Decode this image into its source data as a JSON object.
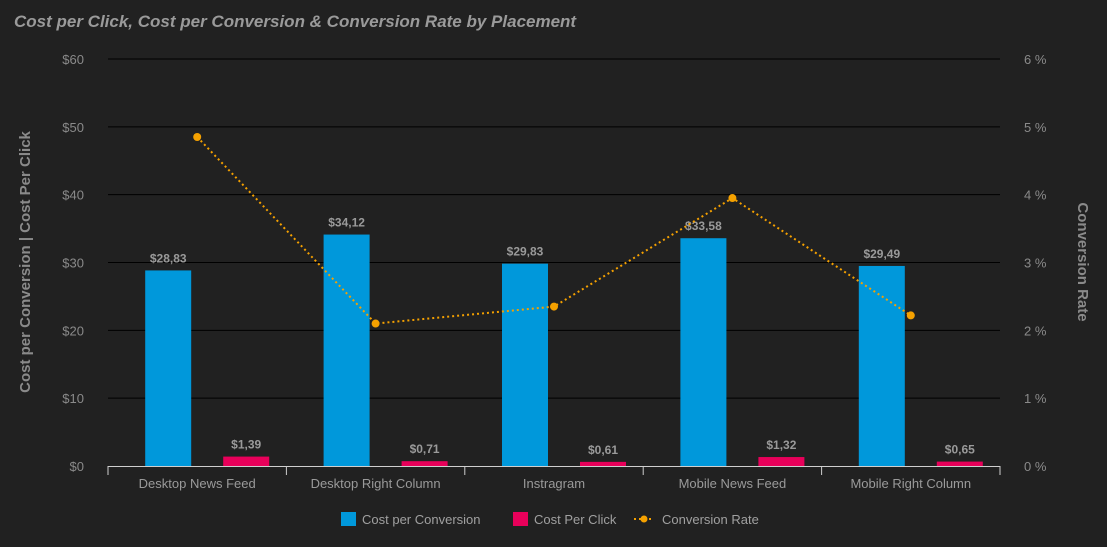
{
  "chart_data": {
    "type": "bar",
    "title": "Cost per Click, Cost per Conversion & Conversion Rate by Placement",
    "ylabel": "Cost per Conversion | Cost Per Click",
    "y2label": "Conversion Rate",
    "ylim": [
      0,
      60
    ],
    "y2lim": [
      0,
      6
    ],
    "y_ticks": [
      "$0",
      "$10",
      "$20",
      "$30",
      "$40",
      "$50",
      "$60"
    ],
    "y2_ticks": [
      "0 %",
      "1 %",
      "2 %",
      "3 %",
      "4 %",
      "5 %",
      "6 %"
    ],
    "grid": true,
    "legend_position": "bottom",
    "categories": [
      "Desktop News Feed",
      "Desktop Right Column",
      "Instragram",
      "Mobile News Feed",
      "Mobile Right Column"
    ],
    "series": [
      {
        "name": "Cost per Conversion",
        "kind": "bar",
        "axis": "left",
        "color": "#0098DB",
        "values": [
          28.83,
          34.12,
          29.83,
          33.58,
          29.49
        ],
        "labels": [
          "$28,83",
          "$34,12",
          "$29,83",
          "$33,58",
          "$29,49"
        ]
      },
      {
        "name": "Cost Per Click",
        "kind": "bar",
        "axis": "left",
        "color": "#E8005A",
        "values": [
          1.39,
          0.71,
          0.61,
          1.32,
          0.65
        ],
        "labels": [
          "$1,39",
          "$0,71",
          "$0,61",
          "$1,32",
          "$0,65"
        ]
      },
      {
        "name": "Conversion Rate",
        "kind": "line",
        "axis": "right",
        "style": "dotted",
        "color": "#F5A100",
        "values": [
          4.85,
          2.1,
          2.35,
          3.95,
          2.22
        ]
      }
    ]
  }
}
